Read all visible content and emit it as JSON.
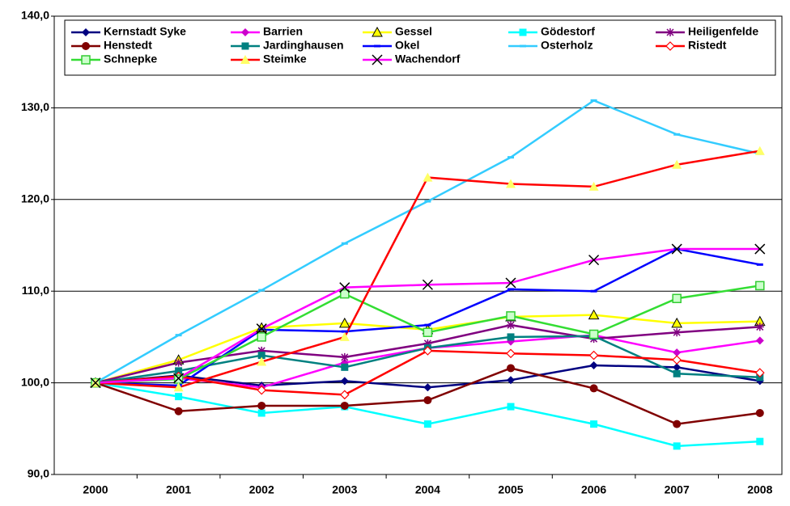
{
  "chart_data": {
    "type": "line",
    "categories": [
      "2000",
      "2001",
      "2002",
      "2003",
      "2004",
      "2005",
      "2006",
      "2007",
      "2008"
    ],
    "ylim": [
      90,
      140
    ],
    "yticks": [
      {
        "value": 90,
        "label": "90,0"
      },
      {
        "value": 100,
        "label": "100,0"
      },
      {
        "value": 110,
        "label": "110,0"
      },
      {
        "value": 120,
        "label": "120,0"
      },
      {
        "value": 130,
        "label": "130,0"
      },
      {
        "value": 140,
        "label": "140,0"
      }
    ],
    "grid": true,
    "legend": "top",
    "series": [
      {
        "name": "Kernstadt Syke",
        "color": "#000080",
        "marker": "diamond",
        "marker_color": "#000080",
        "values": [
          100,
          100.8,
          99.7,
          100.2,
          99.5,
          100.3,
          101.9,
          101.7,
          100.2
        ]
      },
      {
        "name": "Barrien",
        "color": "#ff00ff",
        "marker": "diamond",
        "marker_color": "#cc00cc",
        "values": [
          100,
          100.5,
          99.5,
          102.2,
          103.8,
          104.5,
          105.2,
          103.3,
          104.6
        ]
      },
      {
        "name": "Gessel",
        "color": "#ffff00",
        "marker": "triangle",
        "marker_color": "#ffff00",
        "values": [
          100,
          102.5,
          106.0,
          106.5,
          105.8,
          107.2,
          107.4,
          106.5,
          106.7
        ]
      },
      {
        "name": "Gödestorf",
        "color": "#00ffff",
        "marker": "square",
        "marker_color": "#00ffff",
        "values": [
          100,
          98.5,
          96.7,
          97.4,
          95.5,
          97.4,
          95.5,
          93.1,
          93.6
        ]
      },
      {
        "name": "Heiligenfelde",
        "color": "#800080",
        "marker": "star",
        "marker_color": "#800080",
        "values": [
          100,
          102.2,
          103.5,
          102.8,
          104.3,
          106.3,
          104.8,
          105.5,
          106.1
        ]
      },
      {
        "name": "Henstedt",
        "color": "#800000",
        "marker": "circle",
        "marker_color": "#800000",
        "values": [
          100,
          96.9,
          97.5,
          97.5,
          98.1,
          101.6,
          99.4,
          95.5,
          96.7
        ]
      },
      {
        "name": "Jardinghausen",
        "color": "#008080",
        "marker": "square",
        "marker_color": "#008080",
        "values": [
          100,
          101.3,
          103.0,
          101.7,
          103.8,
          105.0,
          105.1,
          101.0,
          100.6
        ]
      },
      {
        "name": "Okel",
        "color": "#0000ff",
        "marker": "dash",
        "marker_color": "#0000ff",
        "values": [
          100,
          99.7,
          105.8,
          105.6,
          106.3,
          110.2,
          110.0,
          114.6,
          112.9
        ]
      },
      {
        "name": "Osterholz",
        "color": "#33ccff",
        "marker": "dash",
        "marker_color": "#33ccff",
        "values": [
          100,
          105.2,
          110.1,
          115.2,
          119.8,
          124.6,
          130.8,
          127.1,
          125.0
        ]
      },
      {
        "name": "Ristedt",
        "color": "#ff0000",
        "marker": "open-diamond",
        "marker_color": "#ff0000",
        "values": [
          100,
          100.7,
          99.2,
          98.7,
          103.5,
          103.2,
          103.0,
          102.5,
          101.1
        ]
      },
      {
        "name": "Schnepke",
        "color": "#33dd33",
        "marker": "open-square",
        "marker_color": "#33cc33",
        "values": [
          100,
          100.4,
          105.0,
          109.7,
          105.5,
          107.3,
          105.3,
          109.2,
          110.6
        ]
      },
      {
        "name": "Steimke",
        "color": "#ff0000",
        "marker": "triangle",
        "marker_color": "#ffff66",
        "values": [
          100,
          99.5,
          102.3,
          105.0,
          122.4,
          121.7,
          121.4,
          123.8,
          125.3
        ]
      },
      {
        "name": "Wachendorf",
        "color": "#ff00ff",
        "marker": "x",
        "marker_color": "#000000",
        "values": [
          100,
          100.5,
          105.9,
          110.4,
          110.7,
          110.9,
          113.4,
          114.6,
          114.6
        ]
      }
    ]
  }
}
